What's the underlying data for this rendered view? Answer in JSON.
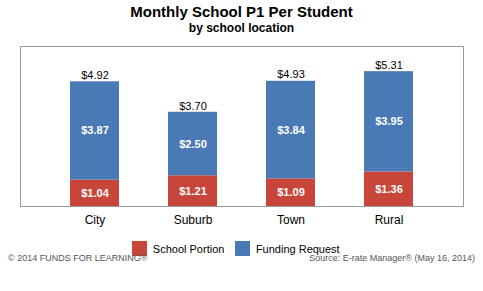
{
  "chart_data": {
    "type": "bar",
    "stacked": true,
    "title": "Monthly School P1 Per Student",
    "subtitle": "by school location",
    "categories": [
      "City",
      "Suburb",
      "Town",
      "Rural"
    ],
    "series": [
      {
        "name": "School Portion",
        "color": "#c8453a",
        "values": [
          1.04,
          1.21,
          1.09,
          1.36
        ],
        "value_labels": [
          "$1.04",
          "$1.21",
          "$1.09",
          "$1.36"
        ]
      },
      {
        "name": "Funding Request",
        "color": "#4a7ab5",
        "values": [
          3.87,
          2.5,
          3.84,
          3.95
        ],
        "value_labels": [
          "$3.87",
          "$2.50",
          "$3.84",
          "$3.95"
        ]
      }
    ],
    "totals": [
      4.92,
      3.7,
      4.93,
      5.31
    ],
    "total_labels": [
      "$4.92",
      "$3.70",
      "$4.93",
      "$5.31"
    ],
    "ylim": [
      0,
      6.3
    ],
    "tick_labels": "x",
    "grid": false,
    "data_labels": true,
    "legend": "bottom",
    "footer_left": "© 2014 FUNDS FOR LEARNING®",
    "footer_right": "Source: E-rate Manager® (May 16, 2014)"
  }
}
